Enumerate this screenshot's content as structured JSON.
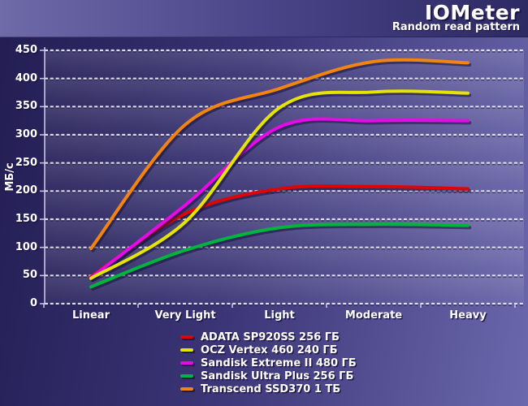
{
  "header": {
    "title": "IOMeter",
    "subtitle": "Random read pattern"
  },
  "chart_data": {
    "type": "line",
    "title": "IOMeter",
    "subtitle": "Random read pattern",
    "categories": [
      "Linear",
      "Very Light",
      "Light",
      "Moderate",
      "Heavy"
    ],
    "series": [
      {
        "name": "ADATA SP920SS 256 ГБ",
        "color": "#e00505",
        "values": [
          48,
          160,
          204,
          208,
          204
        ]
      },
      {
        "name": "OCZ Vertex 460 240 ГБ",
        "color": "#e5e500",
        "values": [
          45,
          145,
          348,
          376,
          374
        ]
      },
      {
        "name": "Sandisk Extreme II 480 ГБ",
        "color": "#e808e8",
        "values": [
          46,
          175,
          314,
          325,
          325
        ]
      },
      {
        "name": "Sandisk Ultra Plus 256 ГБ",
        "color": "#00b53e",
        "values": [
          30,
          95,
          135,
          141,
          139
        ]
      },
      {
        "name": "Transcend SSD370 1 ТБ",
        "color": "#f28411",
        "values": [
          98,
          318,
          382,
          430,
          428
        ]
      }
    ],
    "xlabel": "",
    "ylabel": "МБ/с",
    "ylim": [
      0,
      450
    ],
    "ytick_step": 50,
    "ytick_labels": [
      "0",
      "50",
      "100",
      "150",
      "200",
      "250",
      "300",
      "350",
      "400",
      "450"
    ],
    "grid": "horizontal-dotted-white",
    "legend_position": "bottom-center",
    "line_smoothing": true
  },
  "colors": {
    "background_left": "#221d52",
    "background_right": "#6c68ad",
    "header_left": "#6f6aa8",
    "header_right": "#2d2963",
    "text": "#ffffff",
    "gridline": "#eaeaf4"
  }
}
